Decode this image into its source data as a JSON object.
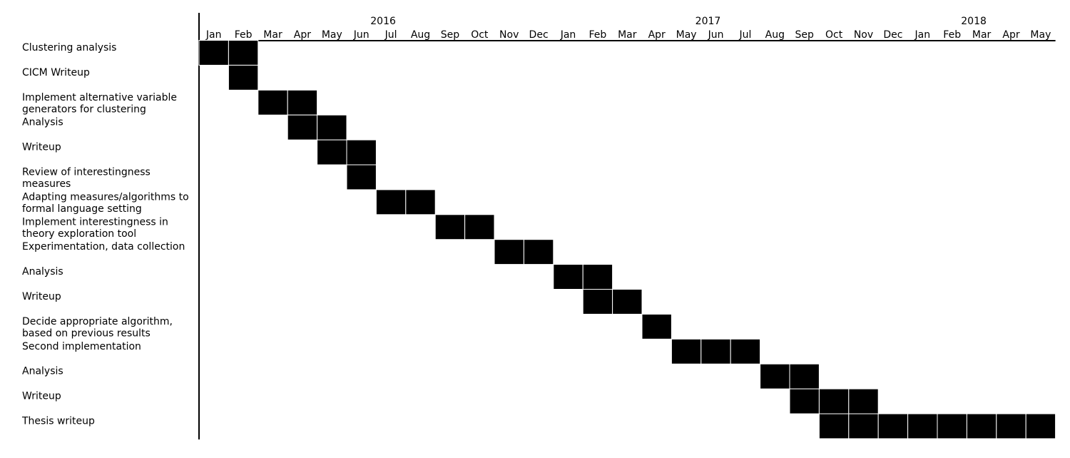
{
  "chart_data": {
    "type": "gantt",
    "title": "",
    "timeline_start": "2016-01",
    "timeline_end": "2018-05",
    "years": [
      {
        "label": "2016",
        "month": "2016-07"
      },
      {
        "label": "2017",
        "month": "2017-06"
      },
      {
        "label": "2018",
        "month": "2018-03"
      }
    ],
    "months": [
      "Jan",
      "Feb",
      "Mar",
      "Apr",
      "May",
      "Jun",
      "Jul",
      "Aug",
      "Sep",
      "Oct",
      "Nov",
      "Dec",
      "Jan",
      "Feb",
      "Mar",
      "Apr",
      "May",
      "Jun",
      "Jul",
      "Aug",
      "Sep",
      "Oct",
      "Nov",
      "Dec",
      "Jan",
      "Feb",
      "Mar",
      "Apr",
      "May"
    ],
    "bar_color": "#000000",
    "tasks": [
      {
        "label": [
          "Clustering analysis"
        ],
        "start": "2016-01",
        "end": "2016-02"
      },
      {
        "label": [
          "CICM Writeup"
        ],
        "start": "2016-02",
        "end": "2016-02"
      },
      {
        "label": [
          "Implement alternative variable",
          "generators for clustering"
        ],
        "start": "2016-03",
        "end": "2016-04"
      },
      {
        "label": [
          "Analysis"
        ],
        "start": "2016-04",
        "end": "2016-05"
      },
      {
        "label": [
          "Writeup"
        ],
        "start": "2016-05",
        "end": "2016-06"
      },
      {
        "label": [
          "Review of interestingness",
          "measures"
        ],
        "start": "2016-06",
        "end": "2016-06"
      },
      {
        "label": [
          "Adapting measures/algorithms to",
          "formal language setting"
        ],
        "start": "2016-07",
        "end": "2016-08"
      },
      {
        "label": [
          "Implement interestingness in",
          "theory exploration tool"
        ],
        "start": "2016-09",
        "end": "2016-10"
      },
      {
        "label": [
          "Experimentation, data collection"
        ],
        "start": "2016-11",
        "end": "2016-12"
      },
      {
        "label": [
          "Analysis"
        ],
        "start": "2017-01",
        "end": "2017-02"
      },
      {
        "label": [
          "Writeup"
        ],
        "start": "2017-02",
        "end": "2017-03"
      },
      {
        "label": [
          "Decide appropriate algorithm,",
          "based on previous results"
        ],
        "start": "2017-04",
        "end": "2017-04"
      },
      {
        "label": [
          "Second implementation"
        ],
        "start": "2017-05",
        "end": "2017-07"
      },
      {
        "label": [
          "Analysis"
        ],
        "start": "2017-08",
        "end": "2017-09"
      },
      {
        "label": [
          "Writeup"
        ],
        "start": "2017-09",
        "end": "2017-11"
      },
      {
        "label": [
          "Thesis writeup"
        ],
        "start": "2017-10",
        "end": "2018-05"
      }
    ]
  }
}
